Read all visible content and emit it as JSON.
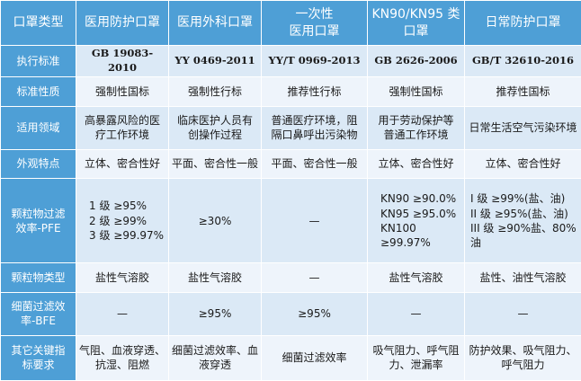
{
  "table": {
    "columns": [
      "口罩类型",
      "医用防护口罩",
      "医用外科口罩",
      "一次性\n医用口罩",
      "KN90/KN95 类\n口罩",
      "日常防护口罩"
    ],
    "rows": [
      {
        "label": "执行标准",
        "cells": [
          "GB 19083-2010",
          "YY 0469-2011",
          "YY/T 0969-2013",
          "GB 2626-2006",
          "GB/T 32610-2016"
        ]
      },
      {
        "label": "标准性质",
        "cells": [
          "强制性国标",
          "强制性行标",
          "推荐性行标",
          "强制性国标",
          "推荐性国标"
        ]
      },
      {
        "label": "适用领域",
        "cells": [
          "高暴露风险的医\n疗工作环境",
          "临床医护人员有\n创操作过程",
          "普通医疗环境，阻\n隔口鼻呼出污染物",
          "用于劳动保护等\n普通工作环境",
          "日常生活空气污染环境"
        ]
      },
      {
        "label": "外观特点",
        "cells": [
          "立体、密合性好",
          "平面、密合性一般",
          "平面、密合性一般",
          "立体、密合性好",
          "立体、密合性好"
        ]
      },
      {
        "label": "颗粒物过滤\n效率-PFE",
        "cells": [
          "1 级  ≥95%\n2 级  ≥99%\n3 级  ≥99.97%",
          "≥30%",
          "—",
          "KN90  ≥90.0%\nKN95  ≥95.0%\nKN100  ≥99.97%",
          "I 级  ≥99%(盐、油)\nII 级  ≥95%(盐、油)\nIII 级  ≥90%盐、80%\n油"
        ]
      },
      {
        "label": "颗粒物类型",
        "cells": [
          "盐性气溶胶",
          "盐性气溶胶",
          "—",
          "盐性气溶胶",
          "盐性、油性气溶胶"
        ]
      },
      {
        "label": "细菌过滤效\n率-BFE",
        "cells": [
          "—",
          "≥95%",
          "≥95%",
          "—",
          "—"
        ]
      },
      {
        "label": "其它关键指\n标要求",
        "cells": [
          "气阻、血液穿透、\n抗湿、阻燃",
          "细菌过滤效率、血\n液穿透",
          "细菌过滤效率",
          "吸气阻力、呼气阻\n力、泄漏率",
          "防护效果、吸气阻力、\n呼气阻力"
        ]
      }
    ]
  }
}
